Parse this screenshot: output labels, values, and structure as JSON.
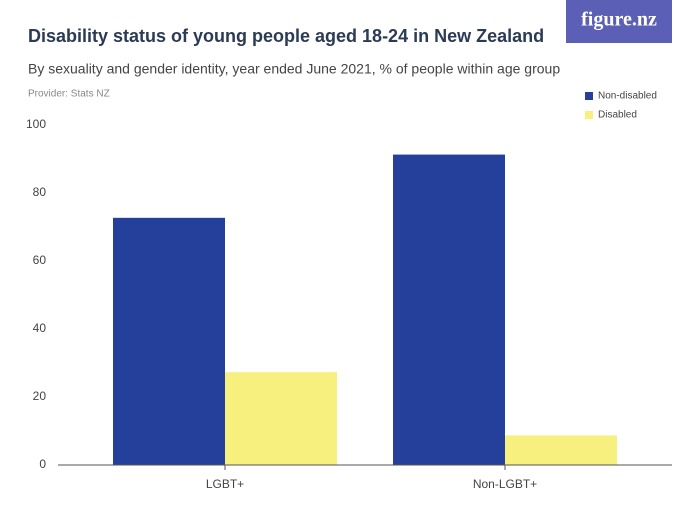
{
  "chart_data": {
    "type": "bar",
    "logo": "figure.nz",
    "title": "Disability status of young people aged 18-24 in New Zealand",
    "subtitle": "By sexuality and gender identity, year ended June 2021, % of people within age group",
    "provider": "Provider: Stats NZ",
    "categories": [
      "LGBT+",
      "Non-LGBT+"
    ],
    "series": [
      {
        "name": "Non-disabled",
        "color": "#25409a",
        "values": [
          72.7,
          91.3
        ]
      },
      {
        "name": "Disabled",
        "color": "#f7f07f",
        "values": [
          27.3,
          8.7
        ]
      }
    ],
    "ylim": [
      0,
      100
    ],
    "yticks": [
      0,
      20,
      40,
      60,
      80,
      100
    ],
    "grid": false,
    "legend": "top-right"
  }
}
